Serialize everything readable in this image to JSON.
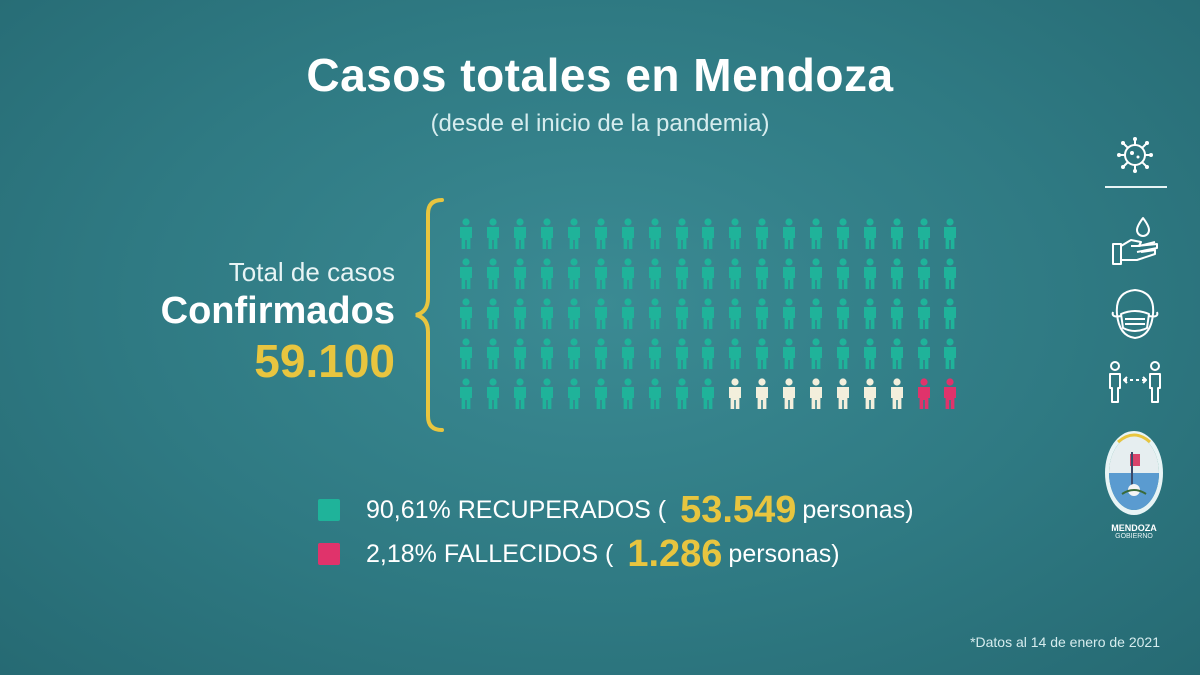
{
  "title": "Casos totales en Mendoza",
  "subtitle": "(desde el inicio de la pandemia)",
  "total": {
    "label_small": "Total de casos",
    "label_big": "Confirmados",
    "value": "59.100"
  },
  "icon_grid": {
    "rows": 5,
    "cols": 19,
    "recovered_count": 86,
    "active_count": 7,
    "deceased_count": 2
  },
  "legend": {
    "recovered": {
      "percent_label": "90,61% RECUPERADOS (",
      "number": "53.549",
      "suffix": "personas)"
    },
    "deceased": {
      "percent_label": "2,18% FALLECIDOS (",
      "number": "1.286",
      "suffix": "personas)"
    }
  },
  "footnote": "*Datos al 14 de enero de 2021",
  "logo": {
    "name": "MENDOZA",
    "sub": "GOBIERNO"
  },
  "colors": {
    "background": "#2f7a83",
    "recovered": "#1fb39a",
    "active": "#f3efdc",
    "deceased": "#e0336b",
    "accent": "#e8c53f",
    "text": "#ffffff"
  },
  "side_icons": [
    "virus-icon",
    "hand-wash-icon",
    "face-mask-icon",
    "social-distance-icon"
  ]
}
